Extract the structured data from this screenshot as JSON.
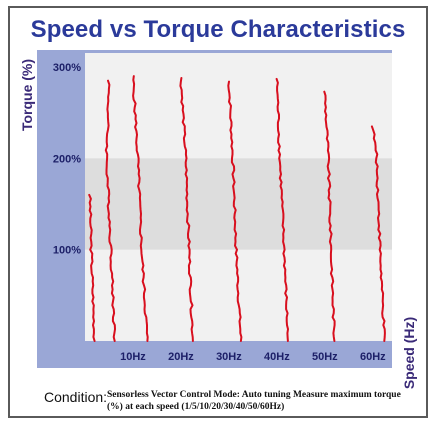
{
  "chart_data": {
    "type": "line",
    "title": "Speed vs Torque Characteristics",
    "ylabel": "Torque (%)",
    "xlabel": "Speed (Hz)",
    "y_ticks": [
      "300%",
      "200%",
      "100%"
    ],
    "x_ticks": [
      "10Hz",
      "20Hz",
      "30Hz",
      "40Hz",
      "50Hz",
      "60Hz"
    ],
    "shaded_band_y": [
      100,
      200
    ],
    "series": [
      {
        "values": [
          {
            "x": 1,
            "y": 160
          },
          {
            "x": 1.3,
            "y": 100
          },
          {
            "x": 2,
            "y": 0
          }
        ]
      },
      {
        "values": [
          {
            "x": 5,
            "y": 285
          },
          {
            "x": 4.5,
            "y": 200
          },
          {
            "x": 5.4,
            "y": 100
          },
          {
            "x": 6.2,
            "y": 0
          }
        ]
      },
      {
        "values": [
          {
            "x": 10,
            "y": 290
          },
          {
            "x": 11,
            "y": 200
          },
          {
            "x": 11.8,
            "y": 100
          },
          {
            "x": 13,
            "y": 0
          }
        ]
      },
      {
        "values": [
          {
            "x": 20,
            "y": 288
          },
          {
            "x": 21,
            "y": 200
          },
          {
            "x": 21.7,
            "y": 100
          },
          {
            "x": 22.5,
            "y": 0
          }
        ]
      },
      {
        "values": [
          {
            "x": 30,
            "y": 284
          },
          {
            "x": 30.8,
            "y": 200
          },
          {
            "x": 31.5,
            "y": 100
          },
          {
            "x": 32.5,
            "y": 0
          }
        ]
      },
      {
        "values": [
          {
            "x": 40,
            "y": 287
          },
          {
            "x": 40.6,
            "y": 200
          },
          {
            "x": 41.5,
            "y": 100
          },
          {
            "x": 42.3,
            "y": 0
          }
        ]
      },
      {
        "values": [
          {
            "x": 50,
            "y": 273
          },
          {
            "x": 50.7,
            "y": 200
          },
          {
            "x": 51.3,
            "y": 100
          },
          {
            "x": 52,
            "y": 0
          }
        ]
      },
      {
        "values": [
          {
            "x": 60,
            "y": 235
          },
          {
            "x": 60.8,
            "y": 200
          },
          {
            "x": 61.5,
            "y": 100
          },
          {
            "x": 62.4,
            "y": 0
          }
        ]
      }
    ]
  },
  "condition": {
    "label": "Condition:",
    "text": "Sensorless Vector Control Mode: Auto tuning Measure maximum torque (%) at each speed (1/5/10/20/30/40/50/60Hz)"
  },
  "colors": {
    "title": "#2b3a9a",
    "axis_fill": "#9aa7d6",
    "plot_fill": "#f1f1f1",
    "band_fill": "#dddddd",
    "curve": "#d80f1e",
    "tick_text": "#1d2068"
  }
}
